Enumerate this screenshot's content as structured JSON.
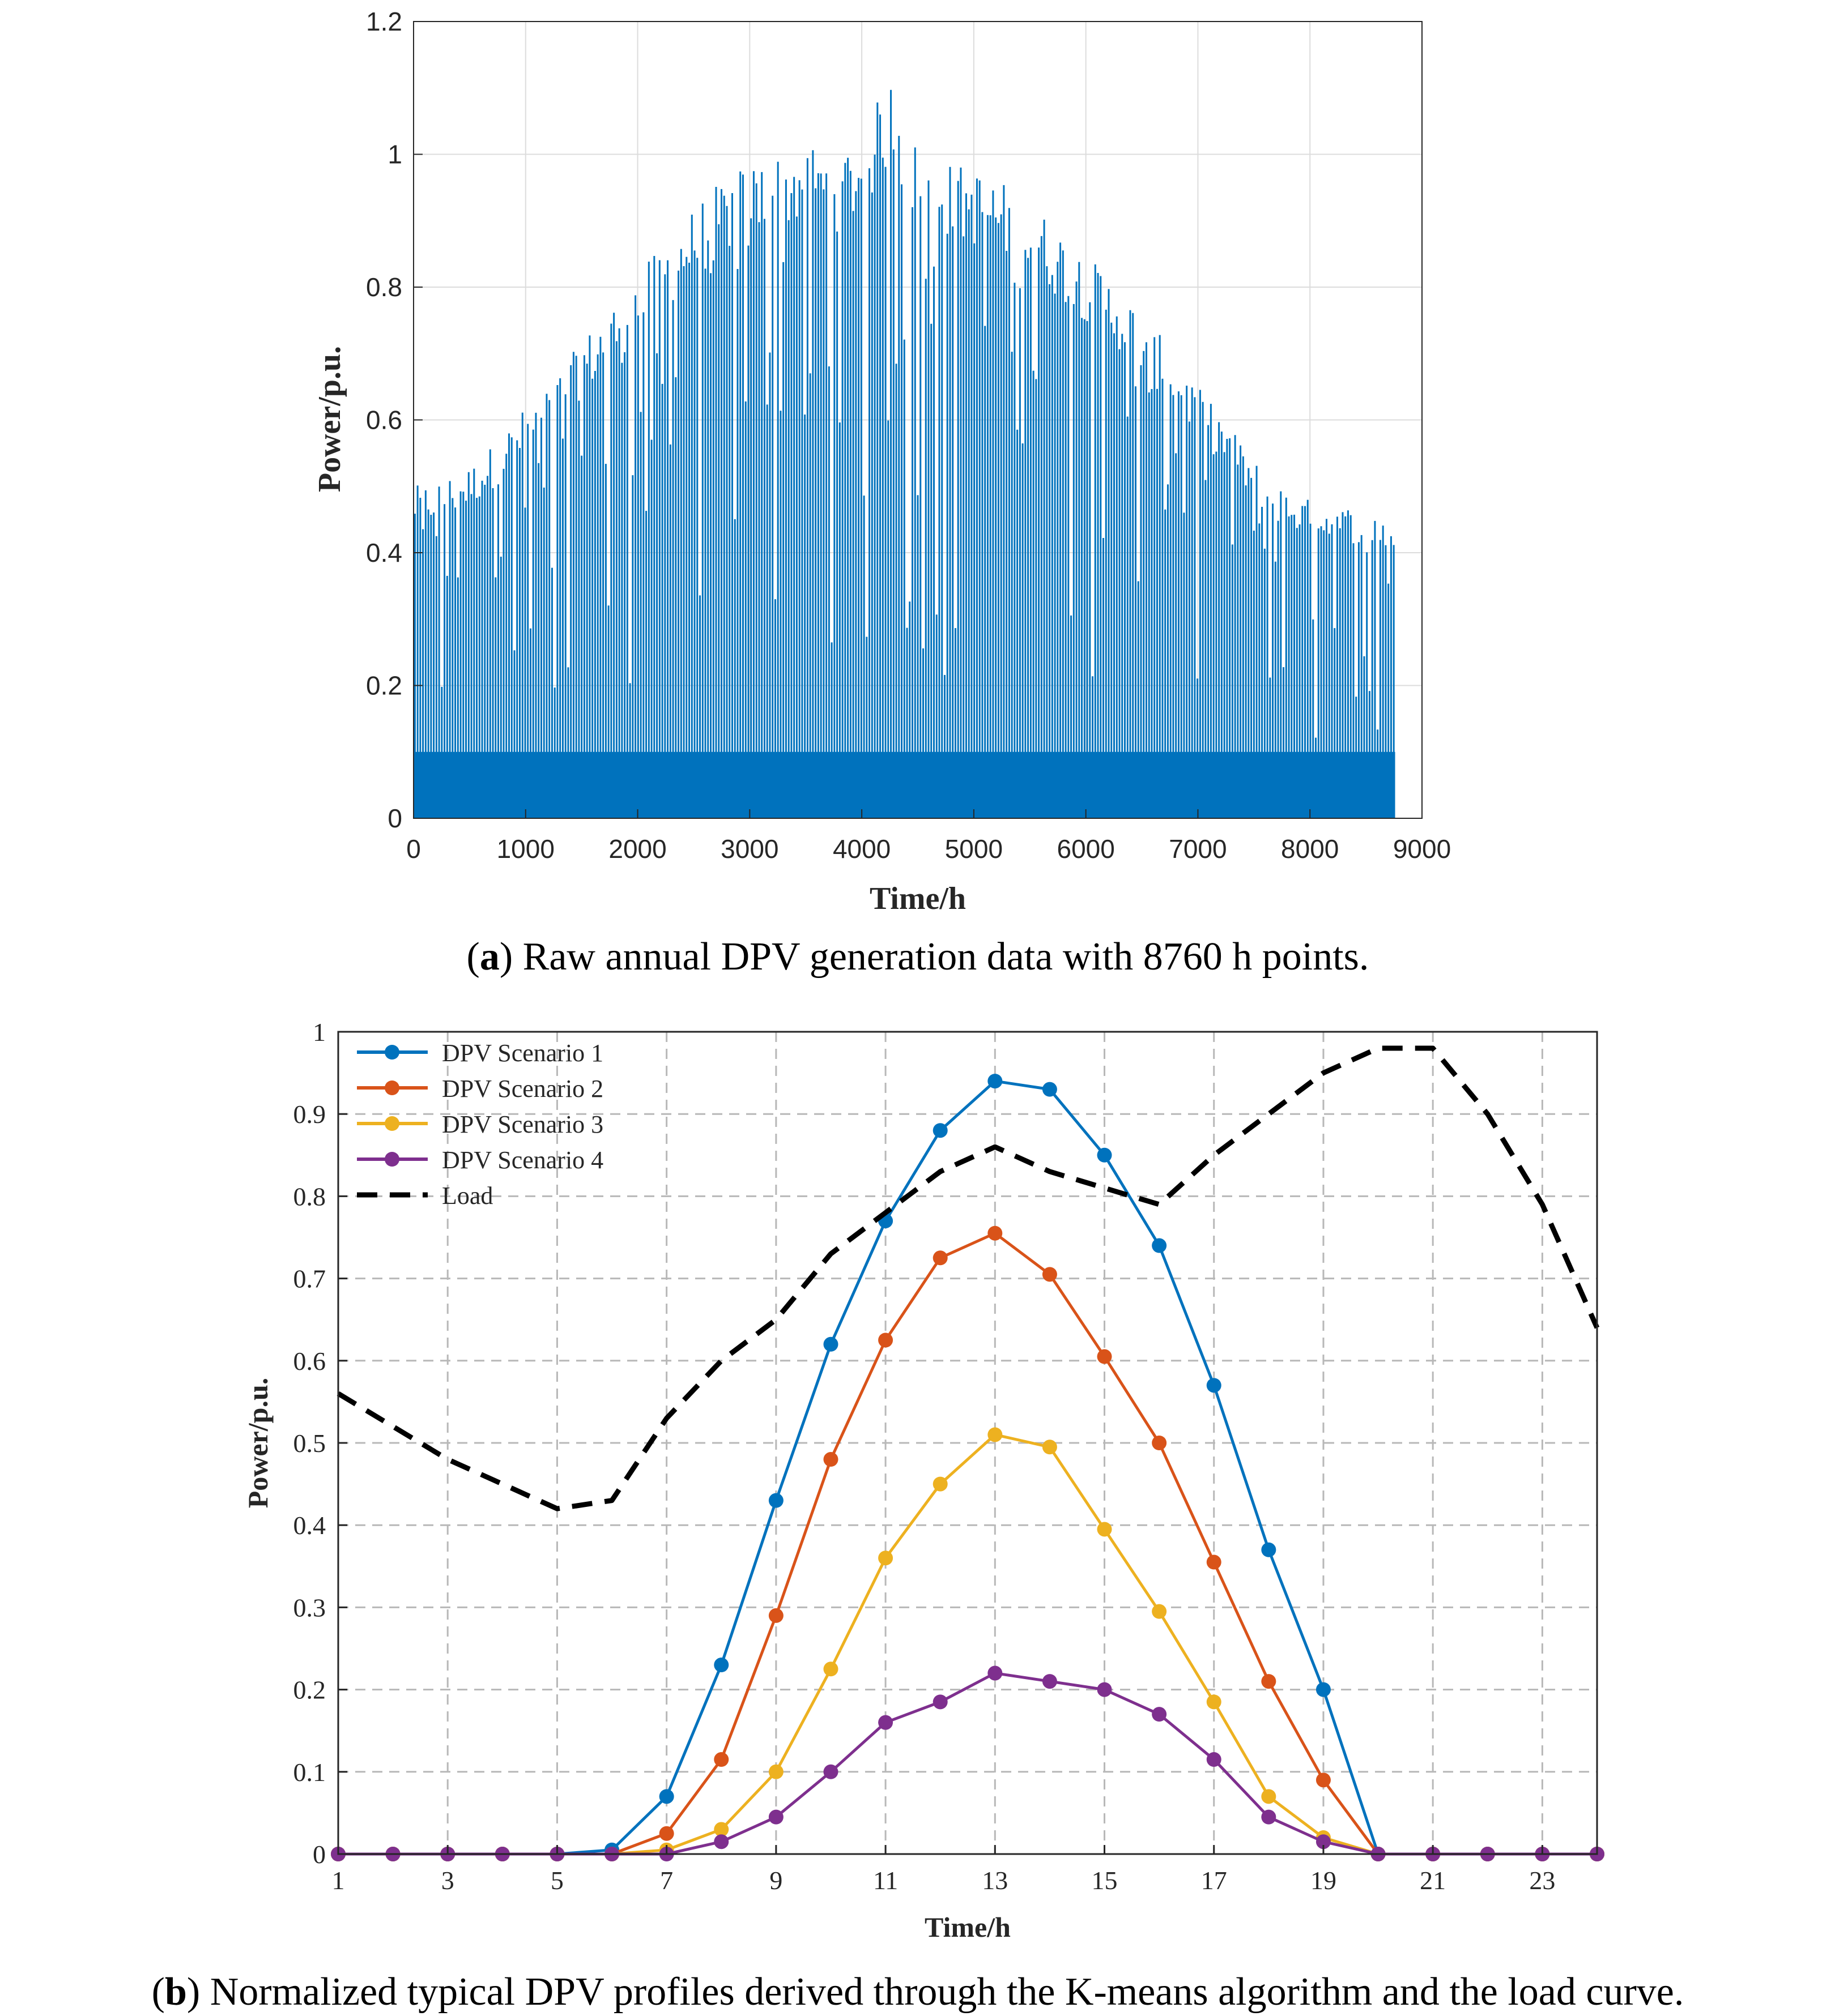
{
  "chart_data": [
    {
      "type": "bar",
      "panel": "a",
      "xlabel": "Time/h",
      "ylabel": "Power/p.u.",
      "xlim": [
        0,
        9000
      ],
      "ylim": [
        0,
        1.2
      ],
      "x_ticks": [
        "0",
        "1000",
        "2000",
        "3000",
        "4000",
        "5000",
        "6000",
        "7000",
        "8000",
        "9000"
      ],
      "y_ticks": [
        "0",
        "0.2",
        "0.4",
        "0.6",
        "0.8",
        "1",
        "1.2"
      ],
      "grid": true,
      "color": "#0072BD",
      "n_points": 8760,
      "envelope": {
        "hours": [
          0,
          250,
          500,
          750,
          1000,
          1250,
          1500,
          1750,
          2000,
          2250,
          2500,
          2750,
          3000,
          3250,
          3500,
          3750,
          4000,
          4250,
          4500,
          4750,
          5000,
          5250,
          5500,
          5750,
          6000,
          6250,
          6500,
          6750,
          7000,
          7250,
          7500,
          7750,
          8000,
          8250,
          8500,
          8760
        ],
        "peak_power": [
          0.5,
          0.51,
          0.53,
          0.57,
          0.62,
          0.66,
          0.72,
          0.77,
          0.82,
          0.87,
          0.92,
          0.96,
          0.99,
          1.0,
          1.02,
          1.0,
          1.03,
          1.12,
          1.01,
          0.99,
          0.98,
          0.96,
          0.93,
          0.89,
          0.85,
          0.81,
          0.76,
          0.71,
          0.65,
          0.6,
          0.54,
          0.5,
          0.48,
          0.47,
          0.47,
          0.45
        ]
      }
    },
    {
      "type": "line",
      "panel": "b",
      "xlabel": "Time/h",
      "ylabel": "Power/p.u.",
      "xlim": [
        1,
        24
      ],
      "ylim": [
        0,
        1
      ],
      "x_ticks": [
        "1",
        "3",
        "5",
        "7",
        "9",
        "11",
        "13",
        "15",
        "17",
        "19",
        "21",
        "23"
      ],
      "y_ticks": [
        "0",
        "0.1",
        "0.2",
        "0.3",
        "0.4",
        "0.5",
        "0.6",
        "0.7",
        "0.8",
        "0.9",
        "1"
      ],
      "grid": "dashed",
      "legend_position": "top-left",
      "x": [
        1,
        2,
        3,
        4,
        5,
        6,
        7,
        8,
        9,
        10,
        11,
        12,
        13,
        14,
        15,
        16,
        17,
        18,
        19,
        20,
        21,
        22,
        23,
        24
      ],
      "series": [
        {
          "name": "DPV Scenario 1",
          "color": "#0072BD",
          "marker": "circle",
          "values": [
            0,
            0,
            0,
            0,
            0,
            0.005,
            0.07,
            0.23,
            0.43,
            0.62,
            0.77,
            0.88,
            0.94,
            0.93,
            0.85,
            0.74,
            0.57,
            0.37,
            0.2,
            0,
            0,
            0,
            0,
            0
          ]
        },
        {
          "name": "DPV Scenario 2",
          "color": "#D95319",
          "marker": "circle",
          "values": [
            0,
            0,
            0,
            0,
            0,
            0,
            0.025,
            0.115,
            0.29,
            0.48,
            0.625,
            0.725,
            0.755,
            0.705,
            0.605,
            0.5,
            0.355,
            0.21,
            0.09,
            0,
            0,
            0,
            0,
            0
          ]
        },
        {
          "name": "DPV Scenario 3",
          "color": "#EDB120",
          "marker": "circle",
          "values": [
            0,
            0,
            0,
            0,
            0,
            0,
            0.005,
            0.03,
            0.1,
            0.225,
            0.36,
            0.45,
            0.51,
            0.495,
            0.395,
            0.295,
            0.185,
            0.07,
            0.02,
            0,
            0,
            0,
            0,
            0
          ]
        },
        {
          "name": "DPV Scenario 4",
          "color": "#7E2F8E",
          "marker": "circle",
          "values": [
            0,
            0,
            0,
            0,
            0,
            0,
            0,
            0.015,
            0.045,
            0.1,
            0.16,
            0.185,
            0.22,
            0.21,
            0.2,
            0.17,
            0.115,
            0.045,
            0.015,
            0,
            0,
            0,
            0,
            0
          ]
        },
        {
          "name": "Load",
          "color": "#000000",
          "marker": "none",
          "dash": "dashed",
          "values": [
            0.56,
            0.52,
            0.48,
            0.45,
            0.42,
            0.43,
            0.53,
            0.6,
            0.65,
            0.73,
            0.78,
            0.83,
            0.86,
            0.83,
            0.81,
            0.79,
            0.85,
            0.9,
            0.95,
            0.98,
            0.98,
            0.9,
            0.79,
            0.64
          ]
        }
      ]
    }
  ],
  "captions": {
    "a_label": "a",
    "a_text": " Raw annual DPV generation data with 8760 h points.",
    "b_label": "b",
    "b_text": " Normalized typical DPV profiles derived through the K-means algorithm and the load curve."
  }
}
